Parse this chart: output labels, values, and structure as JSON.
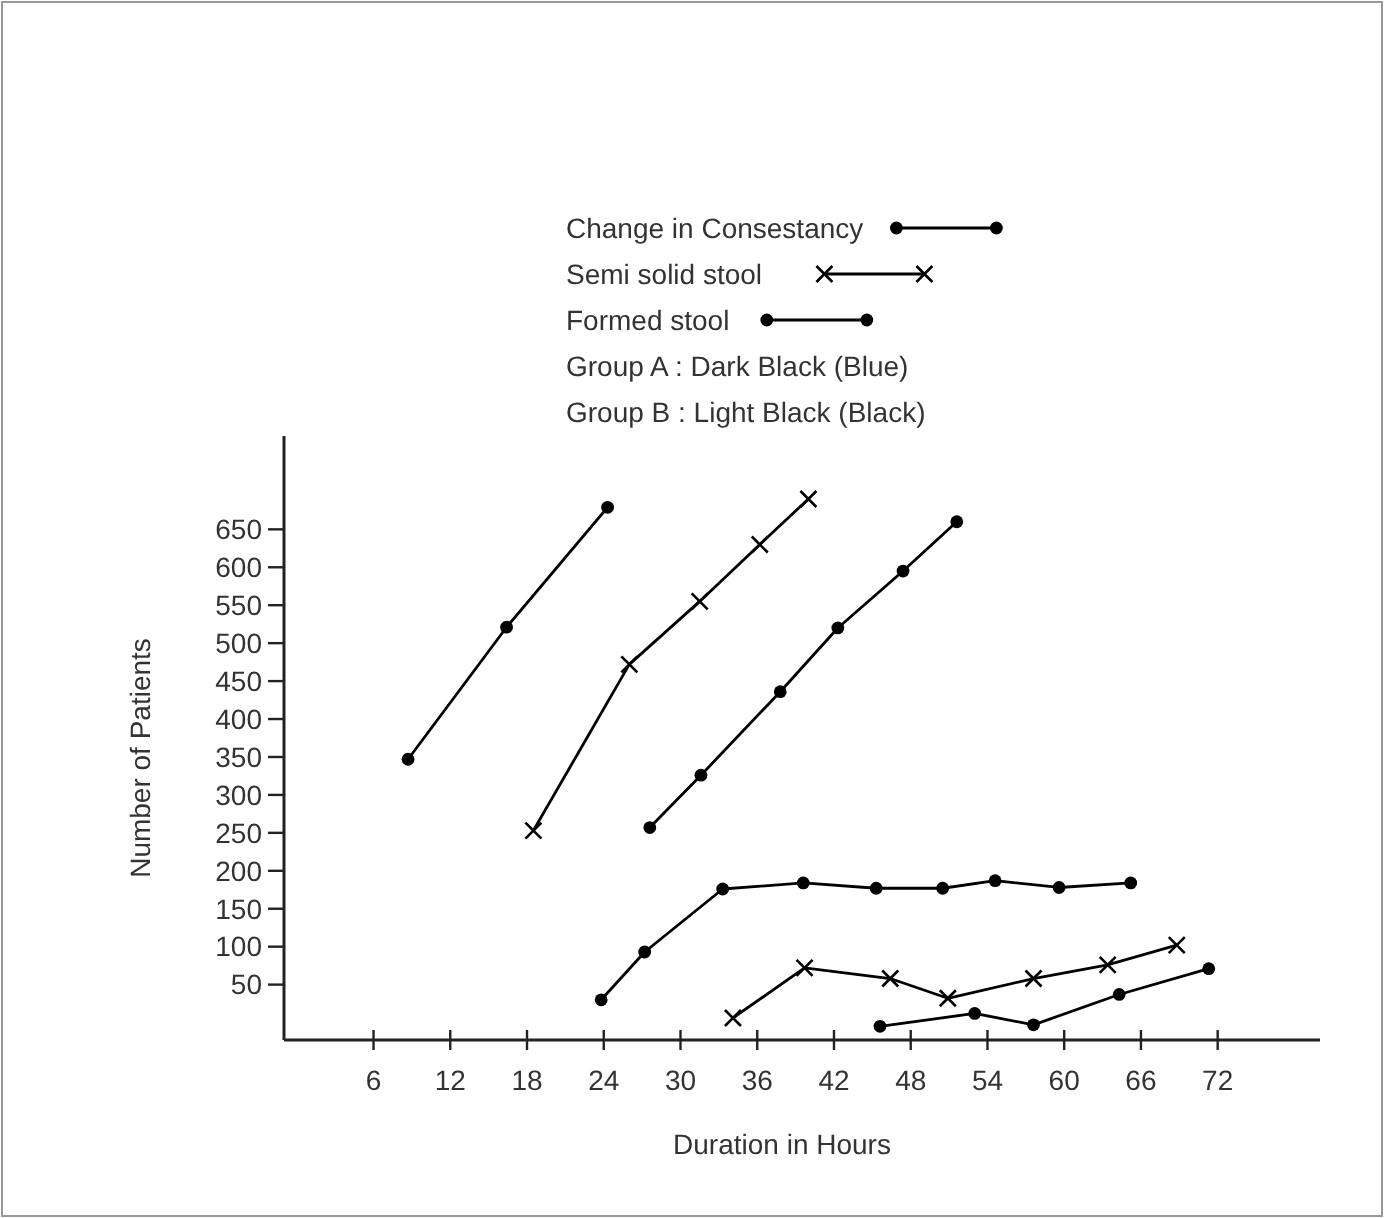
{
  "chart_data": {
    "type": "line",
    "xlabel": "Duration in Hours",
    "ylabel": "Number of Patients",
    "xlim": [
      -1,
      80
    ],
    "ylim": [
      -23,
      773
    ],
    "xticks": [
      6,
      12,
      18,
      24,
      30,
      36,
      42,
      48,
      54,
      60,
      66,
      72
    ],
    "yticks": [
      50,
      100,
      150,
      200,
      250,
      300,
      350,
      400,
      450,
      500,
      550,
      600,
      650
    ],
    "grid": false,
    "legend": "top",
    "line_style": "solid",
    "annotations": [
      "Group A : Dark Black (Blue)",
      "Group B : Light Black (Black)"
    ],
    "series": [
      {
        "name": "Change in Consestancy",
        "color": "#000000",
        "marker": "circle",
        "x": [
          8.7,
          16.4,
          24.3
        ],
        "values": [
          347,
          521,
          679
        ]
      },
      {
        "name": "Semi solid stool",
        "color": "#000000",
        "marker": "cross",
        "x": [
          18.5,
          26,
          31.5,
          36.2,
          40
        ],
        "values": [
          253,
          472,
          555,
          630,
          690
        ]
      },
      {
        "name": "Formed stool",
        "color": "#000000",
        "marker": "circle",
        "x": [
          27.6,
          31.6,
          37.8,
          42.3,
          47.4,
          51.6
        ],
        "values": [
          257,
          326,
          436,
          520,
          595,
          660
        ]
      },
      {
        "color": "#000000",
        "marker": "circle",
        "x": [
          23.8,
          27.2,
          33.3,
          39.6,
          45.3,
          50.5,
          54.6,
          59.6,
          65.2
        ],
        "values": [
          30,
          93,
          176,
          184,
          177,
          177,
          187,
          178,
          184
        ]
      },
      {
        "color": "#000000",
        "marker": "cross",
        "x": [
          34.1,
          39.7,
          46.4,
          50.9,
          57.6,
          63.4,
          68.8
        ],
        "values": [
          6,
          72,
          58,
          32,
          58,
          76,
          102
        ]
      },
      {
        "color": "#000000",
        "marker": "circle",
        "x": [
          45.6,
          53,
          57.6,
          64.3,
          71.3
        ],
        "values": [
          -5,
          12,
          -3,
          37,
          71
        ]
      }
    ]
  }
}
